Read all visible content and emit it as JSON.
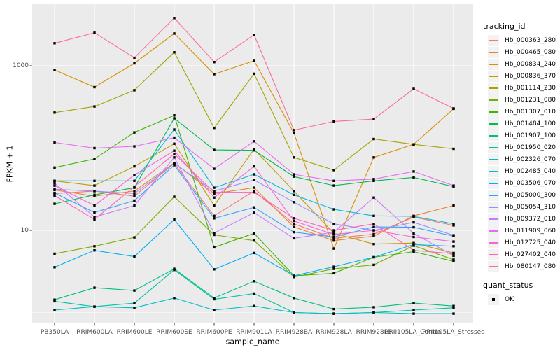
{
  "figure": {
    "background": "#FFFFFF",
    "tick_color": "#4D4D4D",
    "axis_title_color": "#000000",
    "y_tick_labels": [
      "1000",
      "10"
    ]
  },
  "legend": {
    "tracking_title": "tracking_id",
    "quant_title": "quant_status",
    "quant_ok_label": "OK",
    "key_background": "#F2F2F2",
    "key_point_color": "#000000"
  },
  "chart_data": {
    "type": "line",
    "title": "",
    "xlabel": "sample_name",
    "ylabel": "FPKM + 1",
    "y_scale": "log10",
    "y_breaks": [
      10,
      1000
    ],
    "y_minor_breaks": [
      1,
      100
    ],
    "y_range_log10": [
      -0.13,
      3.75
    ],
    "grid": "on",
    "grid_color": "#FFFFFF",
    "panel_background": "#EBEBEB",
    "point_color": "#000000",
    "point_shape_meaning": "quant_status OK",
    "legend_position": "right",
    "categories": [
      "PB350LA",
      "RRIM600LA",
      "RRIM600LE",
      "RRIM600SE",
      "RRIM600PE",
      "RRIM901LA",
      "RRIM928BA",
      "RRIM928LA",
      "RRIM928LE",
      "RRII105LA_Control",
      "RRII105LA_Stressed"
    ],
    "series": [
      {
        "name": "Hb_000363_280",
        "color": "#F8766D",
        "values": [
          28,
          30,
          26,
          65,
          15,
          30,
          12,
          8,
          9,
          14.5,
          11.5
        ]
      },
      {
        "name": "Hb_000465_080",
        "color": "#EA8331",
        "values": [
          31,
          26,
          30,
          66,
          28,
          33,
          11,
          7.5,
          8.5,
          15,
          20
        ]
      },
      {
        "name": "Hb_000834_240",
        "color": "#D89000",
        "values": [
          890,
          550,
          1070,
          2470,
          790,
          1150,
          152,
          6,
          77,
          111,
          300
        ]
      },
      {
        "name": "Hb_000836_370",
        "color": "#C09B00",
        "values": [
          40,
          35,
          60,
          113,
          20,
          97,
          30,
          9.2,
          6.8,
          7,
          5.3
        ]
      },
      {
        "name": "Hb_001114_230",
        "color": "#A3A500",
        "values": [
          270,
          320,
          505,
          1460,
          176,
          800,
          77,
          54,
          129,
          111,
          98
        ]
      },
      {
        "name": "Hb_001231_080",
        "color": "#7CAE00",
        "values": [
          5.2,
          6.4,
          8.2,
          25.6,
          8.8,
          7.5,
          2.7,
          3.4,
          3.8,
          6.5,
          4.4
        ]
      },
      {
        "name": "Hb_001307_010",
        "color": "#39B600",
        "values": [
          58,
          74,
          155,
          250,
          6.2,
          9.2,
          2.8,
          3,
          4.7,
          5.5,
          4.2
        ]
      },
      {
        "name": "Hb_001484_100",
        "color": "#00BB4E",
        "values": [
          21,
          27,
          33,
          230,
          95,
          94,
          45,
          35,
          40,
          44,
          34
        ]
      },
      {
        "name": "Hb_001907_100",
        "color": "#00BF7D",
        "values": [
          1.43,
          2,
          1.85,
          3.4,
          1.5,
          2.4,
          1.5,
          1.1,
          1.16,
          1.3,
          1.2
        ]
      },
      {
        "name": "Hb_001950_020",
        "color": "#00C1A3",
        "values": [
          1.37,
          1.18,
          1.3,
          3.3,
          1.45,
          1.7,
          1,
          0.97,
          1,
          1.07,
          1.14
        ]
      },
      {
        "name": "Hb_002326_070",
        "color": "#00BFC4",
        "values": [
          1.07,
          1.18,
          1.14,
          1.5,
          1.07,
          1.2,
          1,
          0.97,
          1,
          0.97,
          0.97
        ]
      },
      {
        "name": "Hb_002485_040",
        "color": "#00BAE0",
        "values": [
          40,
          40,
          40,
          168,
          33,
          48,
          27,
          18,
          15,
          14.8,
          12
        ]
      },
      {
        "name": "Hb_003506_070",
        "color": "#00B0F6",
        "values": [
          3.55,
          5.7,
          4.8,
          13.5,
          3.35,
          5.3,
          2.8,
          3.6,
          4.7,
          6.7,
          6.4
        ]
      },
      {
        "name": "Hb_005000_300",
        "color": "#35A2FF",
        "values": [
          28.5,
          16.5,
          23,
          62,
          14,
          19,
          9.5,
          8.3,
          11,
          10.9,
          8.5
        ]
      },
      {
        "name": "Hb_005054_310",
        "color": "#9590FF",
        "values": [
          31.6,
          30,
          28,
          65,
          30,
          41,
          22,
          12,
          10,
          12.5,
          8.7
        ]
      },
      {
        "name": "Hb_009372_010",
        "color": "#C77CFF",
        "values": [
          37.5,
          14.5,
          20,
          77,
          9.3,
          16.4,
          8,
          9.5,
          25,
          9.2,
          4.9
        ]
      },
      {
        "name": "Hb_011909_060",
        "color": "#E76BF3",
        "values": [
          117,
          100,
          105,
          134,
          56,
          121,
          48,
          40,
          42,
          52,
          35
        ]
      },
      {
        "name": "Hb_012725_040",
        "color": "#FA62DB",
        "values": [
          35,
          20,
          47,
          93,
          25,
          60,
          13,
          8.9,
          10,
          8.3,
          7.3
        ]
      },
      {
        "name": "Hb_027402_040",
        "color": "#FF62BC",
        "values": [
          26.5,
          13.6,
          34,
          85,
          29,
          29,
          14,
          10,
          12,
          5.7,
          5.2
        ]
      },
      {
        "name": "Hb_080147_080",
        "color": "#FF6A98",
        "values": [
          1880,
          2520,
          1250,
          3810,
          1110,
          2380,
          165,
          211,
          225,
          525,
          303
        ]
      }
    ]
  }
}
